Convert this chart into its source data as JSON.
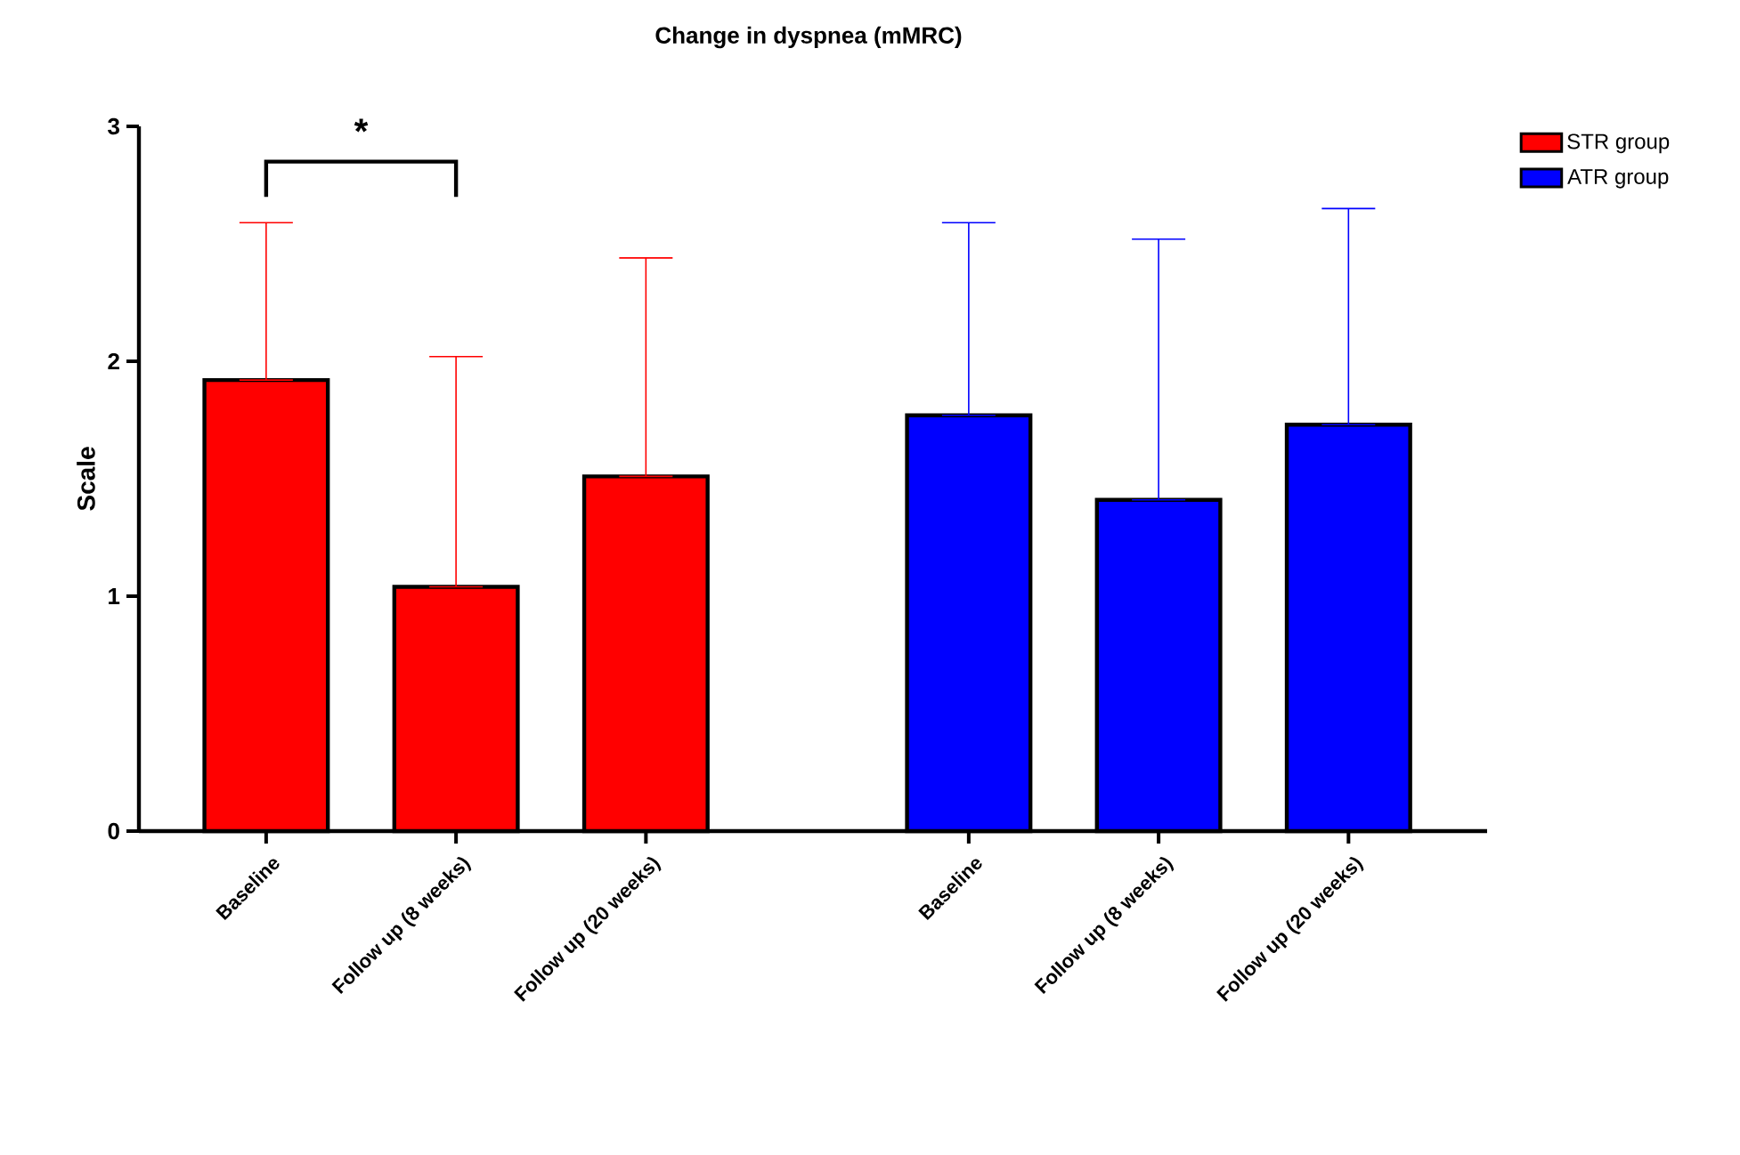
{
  "chart_data": {
    "type": "bar",
    "title": "Change in dyspnea (mMRC)",
    "ylabel": "Scale",
    "categories": [
      "Baseline",
      "Follow up (8 weeks)",
      "Follow up (20 weeks)",
      "Baseline",
      "Follow up (8 weeks)",
      "Follow up (20 weeks)"
    ],
    "series": [
      {
        "name": "STR group",
        "color": "#ff0000",
        "values": [
          1.92,
          1.04,
          1.51,
          null,
          null,
          null
        ],
        "errors": [
          [
            1.92,
            2.59
          ],
          [
            1.04,
            2.02
          ],
          [
            1.51,
            2.44
          ],
          null,
          null,
          null
        ]
      },
      {
        "name": "ATR group",
        "color": "#0000ff",
        "values": [
          null,
          null,
          null,
          1.77,
          1.41,
          1.73
        ],
        "errors": [
          null,
          null,
          null,
          [
            1.77,
            2.59
          ],
          [
            1.41,
            2.52
          ],
          [
            1.73,
            2.65
          ]
        ]
      }
    ],
    "ylim": [
      0,
      3
    ],
    "yticks": [
      0,
      1,
      2,
      3
    ],
    "grid": false,
    "legend": "top right",
    "annotations": [
      "*"
    ]
  }
}
